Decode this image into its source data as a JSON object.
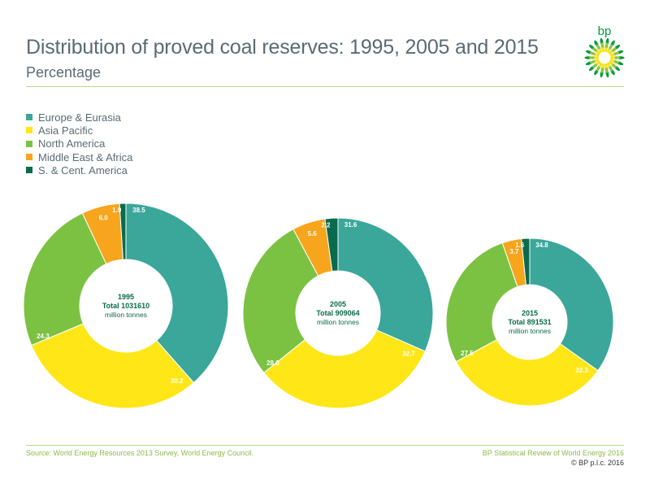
{
  "header": {
    "title": "Distribution of proved coal reserves: 1995, 2005 and 2015",
    "subtitle": "Percentage"
  },
  "logo": {
    "text": "bp",
    "icon": "helios-sunflower",
    "colors": [
      "#009b3a",
      "#f7e21a",
      "#8dc63f"
    ]
  },
  "legend": [
    {
      "label": "Europe & Eurasia",
      "color": "#3aa79a"
    },
    {
      "label": "Asia Pacific",
      "color": "#ffe617"
    },
    {
      "label": "North America",
      "color": "#7cc242"
    },
    {
      "label": "Middle East & Africa",
      "color": "#f7a51c"
    },
    {
      "label": "S. & Cent. America",
      "color": "#0a6b4c"
    }
  ],
  "chart_data": [
    {
      "type": "pie",
      "year": "1995",
      "total_label": "Total 1031610",
      "unit": "million tonnes",
      "slices": [
        {
          "name": "Europe & Eurasia",
          "value": 38.5
        },
        {
          "name": "Asia Pacific",
          "value": 30.2
        },
        {
          "name": "North America",
          "value": 24.3
        },
        {
          "name": "Middle East & Africa",
          "value": 6.0
        },
        {
          "name": "S. & Cent. America",
          "value": 1.0
        }
      ]
    },
    {
      "type": "pie",
      "year": "2005",
      "total_label": "Total 909064",
      "unit": "million tonnes",
      "slices": [
        {
          "name": "Europe & Eurasia",
          "value": 31.6
        },
        {
          "name": "Asia Pacific",
          "value": 32.7
        },
        {
          "name": "North America",
          "value": 28.0
        },
        {
          "name": "Middle East & Africa",
          "value": 5.6
        },
        {
          "name": "S. & Cent. America",
          "value": 2.2
        }
      ]
    },
    {
      "type": "pie",
      "year": "2015",
      "total_label": "Total 891531",
      "unit": "million tonnes",
      "slices": [
        {
          "name": "Europe & Eurasia",
          "value": 34.8
        },
        {
          "name": "Asia Pacific",
          "value": 32.3
        },
        {
          "name": "North America",
          "value": 27.5
        },
        {
          "name": "Middle East & Africa",
          "value": 3.7
        },
        {
          "name": "S. & Cent. America",
          "value": 1.6
        }
      ]
    }
  ],
  "footer": {
    "source": "Source: World Energy Resources 2013 Survey, World Energy Council.",
    "publication": "BP Statistical Review of World Energy 2016",
    "copyright": "© BP p.l.c. 2016"
  }
}
